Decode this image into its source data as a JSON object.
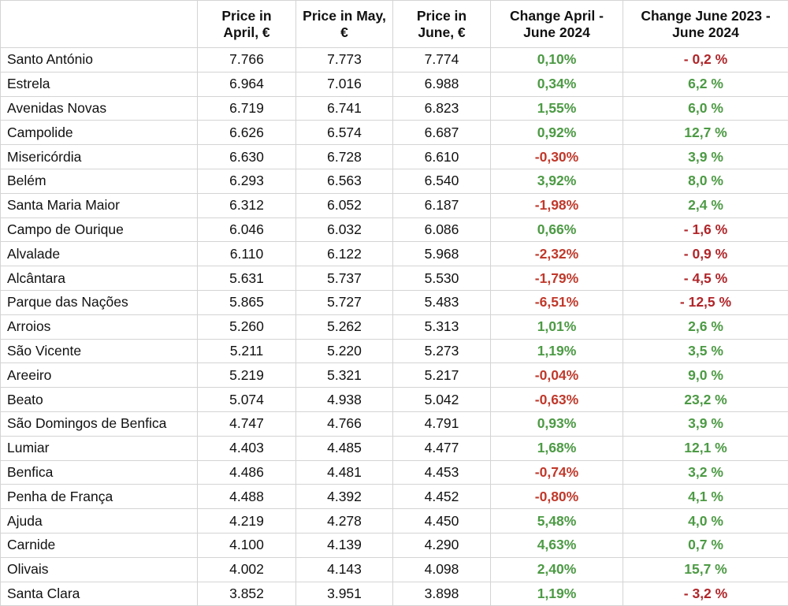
{
  "table": {
    "header": [
      "Price in April, €",
      "Price in May, €",
      "Price in June, €",
      "Change April - June 2024",
      "Change June 2023 - June 2024"
    ],
    "colors": {
      "positive": "#4c9a44",
      "negative": "#c0392b",
      "negative_strong": "#b0262a"
    },
    "rows": [
      [
        "Santo António",
        "7.766",
        "7.773",
        "7.774",
        "0,10%",
        "- 0,2 %"
      ],
      [
        "Estrela",
        "6.964",
        "7.016",
        "6.988",
        "0,34%",
        "6,2 %"
      ],
      [
        "Avenidas Novas",
        "6.719",
        "6.741",
        "6.823",
        "1,55%",
        "6,0 %"
      ],
      [
        "Campolide",
        "6.626",
        "6.574",
        "6.687",
        "0,92%",
        "12,7 %"
      ],
      [
        "Misericórdia",
        "6.630",
        "6.728",
        "6.610",
        "-0,30%",
        "3,9 %"
      ],
      [
        "Belém",
        "6.293",
        "6.563",
        "6.540",
        "3,92%",
        "8,0 %"
      ],
      [
        "Santa Maria Maior",
        "6.312",
        "6.052",
        "6.187",
        "-1,98%",
        "2,4 %"
      ],
      [
        "Campo de Ourique",
        "6.046",
        "6.032",
        "6.086",
        "0,66%",
        "- 1,6 %"
      ],
      [
        "Alvalade",
        "6.110",
        "6.122",
        "5.968",
        "-2,32%",
        "- 0,9 %"
      ],
      [
        "Alcântara",
        "5.631",
        "5.737",
        "5.530",
        "-1,79%",
        "- 4,5 %"
      ],
      [
        "Parque das Nações",
        "5.865",
        "5.727",
        "5.483",
        "-6,51%",
        "- 12,5 %"
      ],
      [
        "Arroios",
        "5.260",
        "5.262",
        "5.313",
        "1,01%",
        "2,6 %"
      ],
      [
        "São Vicente",
        "5.211",
        "5.220",
        "5.273",
        "1,19%",
        "3,5 %"
      ],
      [
        "Areeiro",
        "5.219",
        "5.321",
        "5.217",
        "-0,04%",
        "9,0 %"
      ],
      [
        "Beato",
        "5.074",
        "4.938",
        "5.042",
        "-0,63%",
        "23,2 %"
      ],
      [
        "São Domingos de Benfica",
        "4.747",
        "4.766",
        "4.791",
        "0,93%",
        "3,9 %"
      ],
      [
        "Lumiar",
        "4.403",
        "4.485",
        "4.477",
        "1,68%",
        "12,1 %"
      ],
      [
        "Benfica",
        "4.486",
        "4.481",
        "4.453",
        "-0,74%",
        "3,2 %"
      ],
      [
        "Penha de França",
        "4.488",
        "4.392",
        "4.452",
        "-0,80%",
        "4,1 %"
      ],
      [
        "Ajuda",
        "4.219",
        "4.278",
        "4.450",
        "5,48%",
        "4,0 %"
      ],
      [
        "Carnide",
        "4.100",
        "4.139",
        "4.290",
        "4,63%",
        "0,7 %"
      ],
      [
        "Olivais",
        "4.002",
        "4.143",
        "4.098",
        "2,40%",
        "15,7 %"
      ],
      [
        "Santa Clara",
        "3.852",
        "3.951",
        "3.898",
        "1,19%",
        "- 3,2 %"
      ]
    ]
  }
}
